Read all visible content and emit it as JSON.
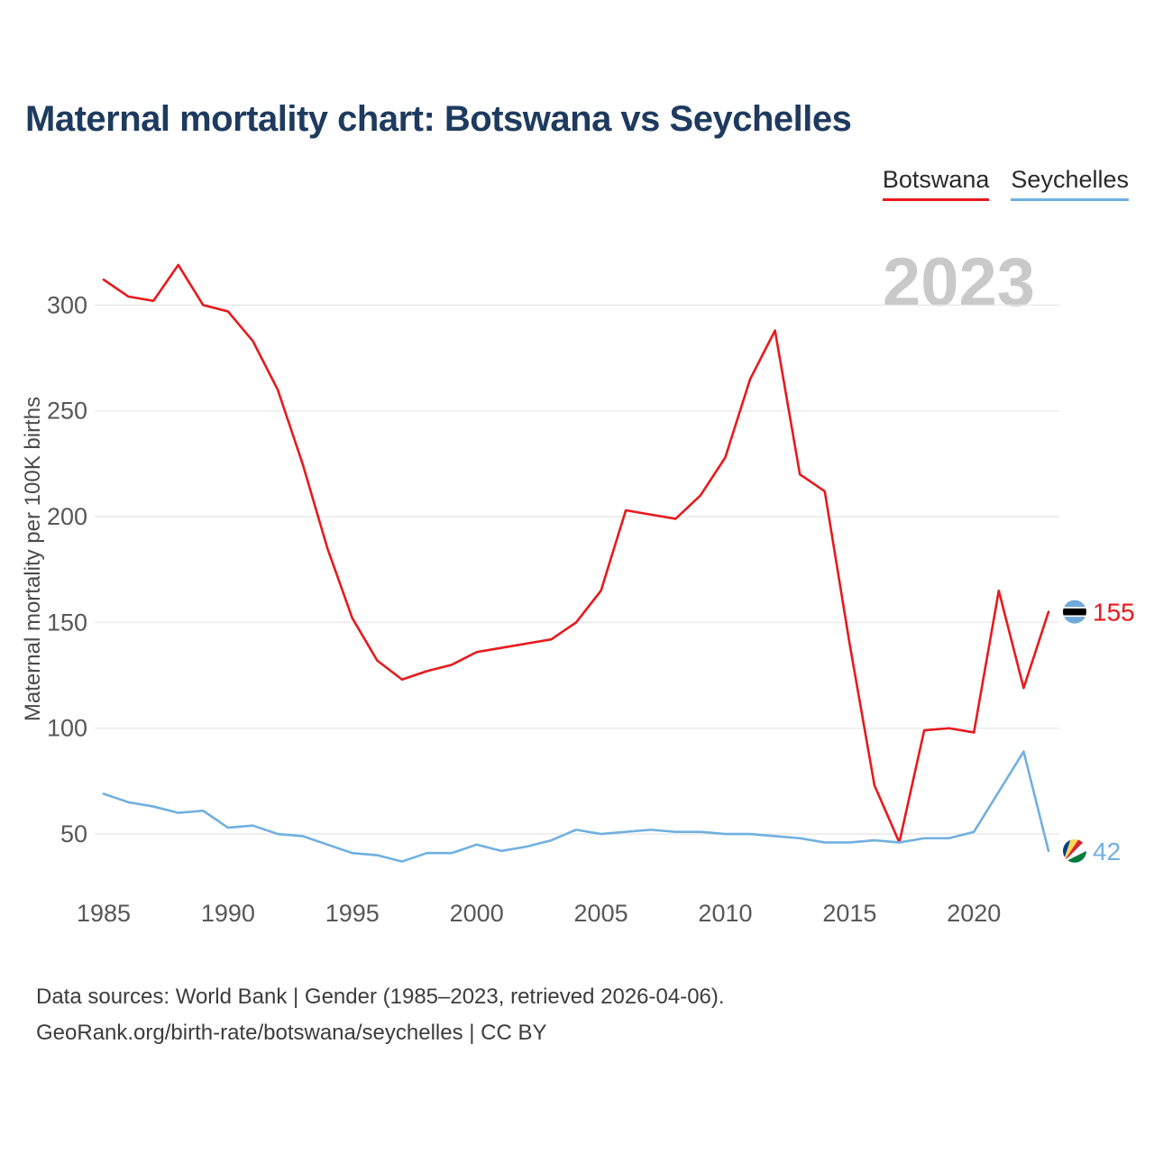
{
  "page": {
    "title": "Maternal mortality chart: Botswana vs Seychelles",
    "watermark": "2023",
    "footer_line1": "Data sources: World Bank | Gender (1985–2023, retrieved 2026-04-06).",
    "footer_line2": "GeoRank.org/birth-rate/botswana/seychelles | CC BY"
  },
  "legend": [
    {
      "label": "Botswana",
      "color": "#e8191c"
    },
    {
      "label": "Seychelles",
      "color": "#70b0e0"
    }
  ],
  "chart_data": {
    "type": "line",
    "title": "Maternal mortality chart: Botswana vs Seychelles",
    "xlabel": "",
    "ylabel": "Maternal mortality per 100K births",
    "x": [
      1985,
      1986,
      1987,
      1988,
      1989,
      1990,
      1991,
      1992,
      1993,
      1994,
      1995,
      1996,
      1997,
      1998,
      1999,
      2000,
      2001,
      2002,
      2003,
      2004,
      2005,
      2006,
      2007,
      2008,
      2009,
      2010,
      2011,
      2012,
      2013,
      2014,
      2015,
      2016,
      2017,
      2018,
      2019,
      2020,
      2021,
      2022,
      2023
    ],
    "series": [
      {
        "name": "Botswana",
        "color": "#e8191c",
        "end_label": "155",
        "flag_icon": "botswana-flag-icon",
        "values": [
          312,
          304,
          302,
          319,
          300,
          297,
          283,
          260,
          225,
          185,
          152,
          132,
          123,
          127,
          130,
          136,
          138,
          140,
          142,
          150,
          165,
          203,
          201,
          199,
          210,
          228,
          265,
          288,
          220,
          212,
          140,
          73,
          46,
          99,
          100,
          98,
          165,
          119,
          155
        ]
      },
      {
        "name": "Seychelles",
        "color": "#70b0e0",
        "end_label": "42",
        "flag_icon": "seychelles-flag-icon",
        "values": [
          69,
          65,
          63,
          60,
          61,
          53,
          54,
          50,
          49,
          45,
          41,
          40,
          37,
          41,
          41,
          45,
          42,
          44,
          47,
          52,
          50,
          51,
          52,
          51,
          51,
          50,
          50,
          49,
          48,
          46,
          46,
          47,
          46,
          48,
          48,
          51,
          70,
          89,
          42
        ]
      }
    ],
    "xticks": [
      1985,
      1990,
      1995,
      2000,
      2005,
      2010,
      2015,
      2020
    ],
    "yticks": [
      50,
      100,
      150,
      200,
      250,
      300
    ],
    "ylim": [
      30,
      330
    ],
    "grid": "horizontal",
    "legend_position": "top-right"
  }
}
